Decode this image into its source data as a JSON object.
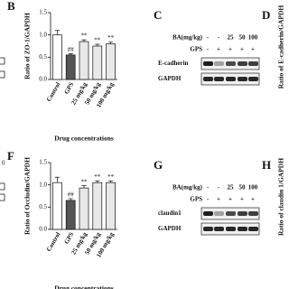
{
  "chart_data": [
    {
      "type": "bar",
      "panel_label": "B",
      "ylabel": "Ratio of ZO-1/GAPDH",
      "xlabel": "Drug concentrations",
      "categories": [
        "Control",
        "GPS",
        "25 mg/kg",
        "50 mg/kg",
        "100 mg/kg"
      ],
      "values": [
        1.0,
        0.55,
        0.85,
        0.75,
        0.8
      ],
      "errors": [
        0.1,
        0.03,
        0.04,
        0.04,
        0.04
      ],
      "annotations": [
        null,
        "##",
        "**",
        "**",
        "**"
      ],
      "colors": [
        "#ffffff",
        "#555555",
        "#e8e8e8",
        "#e8e8e8",
        "#e8e8e8"
      ],
      "ylim": [
        0,
        1.5
      ],
      "yticks": [
        {
          "value": 0,
          "label": "0.0"
        },
        {
          "value": 0.5,
          "label": "0.5"
        },
        {
          "value": 1,
          "label": "1.0"
        },
        {
          "value": 1.5,
          "label": "1.5"
        }
      ]
    },
    {
      "type": "bar",
      "panel_label": "F",
      "ylabel": "Ratio of Occludin/GAPDH",
      "xlabel": "Drug concentrations",
      "categories": [
        "Control",
        "GPS",
        "25 mg/kg",
        "50 mg/kg",
        "100 mg/kg"
      ],
      "values": [
        1.05,
        0.65,
        0.93,
        1.05,
        1.05
      ],
      "errors": [
        0.12,
        0.04,
        0.05,
        0.04,
        0.04
      ],
      "annotations": [
        null,
        "##",
        "**",
        "**",
        "**"
      ],
      "colors": [
        "#ffffff",
        "#555555",
        "#e8e8e8",
        "#e8e8e8",
        "#e8e8e8"
      ],
      "ylim": [
        0,
        1.5
      ],
      "yticks": [
        {
          "value": 0,
          "label": "0.0"
        },
        {
          "value": 0.5,
          "label": "0.5"
        },
        {
          "value": 1,
          "label": "1.0"
        },
        {
          "value": 1.5,
          "label": "1.5"
        }
      ]
    }
  ],
  "blots": [
    {
      "panel_label": "C",
      "dose_label": "BA(mg/kg)",
      "doses": [
        "-",
        "-",
        "25",
        "50",
        "100"
      ],
      "gps_label": "GPS",
      "gps": [
        "-",
        "+",
        "+",
        "+",
        "+"
      ],
      "bands": [
        "E-cadherin",
        "GAPDH"
      ]
    },
    {
      "panel_label": "G",
      "dose_label": "BA(mg/kg)",
      "doses": [
        "-",
        "-",
        "25",
        "50",
        "100"
      ],
      "gps_label": "GPS",
      "gps": [
        "-",
        "+",
        "+",
        "+",
        "+"
      ],
      "bands": [
        "claudin1",
        "GAPDH"
      ]
    }
  ],
  "partial_panels": [
    {
      "panel_label": "D",
      "ylabel": "Ratio of E-cadherin/GAPDH"
    },
    {
      "panel_label": "H",
      "ylabel": "Ratio of claudin 1/GAPDH"
    }
  ],
  "left_fragment": "0"
}
